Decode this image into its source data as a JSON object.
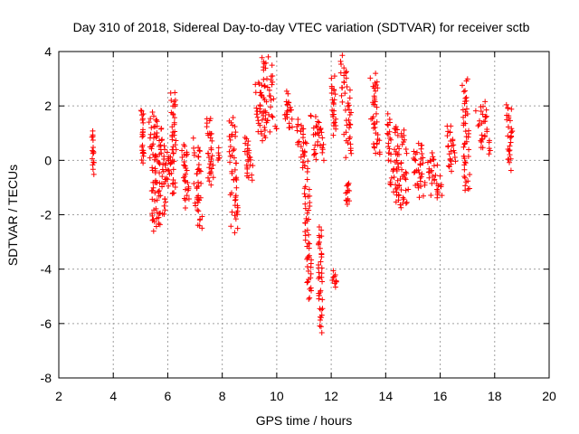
{
  "chart_data": {
    "type": "scatter",
    "title": "Day 310 of 2018, Sidereal Day-to-day VTEC variation (SDTVAR) for receiver sctb",
    "xlabel": "GPS time / hours",
    "ylabel": "SDTVAR / TECUs",
    "xlim": [
      2,
      20
    ],
    "ylim": [
      -8,
      4
    ],
    "xticks": [
      2,
      4,
      6,
      8,
      10,
      12,
      14,
      16,
      18,
      20
    ],
    "yticks": [
      -8,
      -6,
      -4,
      -2,
      0,
      2,
      4
    ],
    "grid": true,
    "marker": "+",
    "color": "#ff0000",
    "series": [
      {
        "name": "SDTVAR",
        "segments": [
          {
            "x": [
              3.2,
              3.3
            ],
            "y": [
              1.0,
              -0.4
            ]
          },
          {
            "x": [
              5.0,
              5.15
            ],
            "y": [
              1.9,
              -0.1
            ]
          },
          {
            "x": [
              5.3,
              5.7
            ],
            "y": [
              1.7,
              -2.6
            ]
          },
          {
            "x": [
              5.5,
              6.0
            ],
            "y": [
              1.4,
              -2.2
            ]
          },
          {
            "x": [
              5.8,
              6.3
            ],
            "y": [
              0.3,
              -1.2
            ]
          },
          {
            "x": [
              6.1,
              6.35
            ],
            "y": [
              2.5,
              0.0
            ]
          },
          {
            "x": [
              6.5,
              6.8
            ],
            "y": [
              0.6,
              -1.6
            ]
          },
          {
            "x": [
              6.9,
              7.3
            ],
            "y": [
              0.7,
              -2.4
            ]
          },
          {
            "x": [
              7.4,
              7.7
            ],
            "y": [
              1.5,
              -0.9
            ]
          },
          {
            "x": [
              7.8,
              7.9
            ],
            "y": [
              0.3,
              0.0
            ]
          },
          {
            "x": [
              8.2,
              8.6
            ],
            "y": [
              1.5,
              -2.5
            ]
          },
          {
            "x": [
              8.8,
              9.2
            ],
            "y": [
              0.8,
              -0.7
            ]
          },
          {
            "x": [
              9.2,
              9.6
            ],
            "y": [
              2.9,
              0.8
            ]
          },
          {
            "x": [
              9.4,
              10.0
            ],
            "y": [
              3.8,
              1.0
            ]
          },
          {
            "x": [
              10.2,
              10.6
            ],
            "y": [
              2.4,
              1.2
            ]
          },
          {
            "x": [
              10.7,
              11.2
            ],
            "y": [
              1.4,
              -0.4
            ]
          },
          {
            "x": [
              11.0,
              11.3
            ],
            "y": [
              -0.8,
              -5.0
            ]
          },
          {
            "x": [
              11.5,
              11.7
            ],
            "y": [
              -2.5,
              -6.2
            ]
          },
          {
            "x": [
              11.2,
              11.8
            ],
            "y": [
              1.6,
              0.1
            ]
          },
          {
            "x": [
              12.0,
              12.2
            ],
            "y": [
              3.0,
              1.0
            ]
          },
          {
            "x": [
              12.0,
              12.2
            ],
            "y": [
              -4.2,
              -4.6
            ]
          },
          {
            "x": [
              12.3,
              12.8
            ],
            "y": [
              3.7,
              0.2
            ]
          },
          {
            "x": [
              12.5,
              12.7
            ],
            "y": [
              -0.8,
              -1.6
            ]
          },
          {
            "x": [
              13.4,
              13.8
            ],
            "y": [
              3.1,
              0.2
            ]
          },
          {
            "x": [
              14.0,
              14.5
            ],
            "y": [
              1.6,
              -1.4
            ]
          },
          {
            "x": [
              14.3,
              14.9
            ],
            "y": [
              1.2,
              -1.8
            ]
          },
          {
            "x": [
              14.9,
              15.5
            ],
            "y": [
              0.6,
              -1.2
            ]
          },
          {
            "x": [
              15.5,
              16.1
            ],
            "y": [
              0.2,
              -1.4
            ]
          },
          {
            "x": [
              16.2,
              16.6
            ],
            "y": [
              1.2,
              -0.4
            ]
          },
          {
            "x": [
              16.8,
              17.1
            ],
            "y": [
              2.9,
              -1.2
            ]
          },
          {
            "x": [
              17.3,
              17.9
            ],
            "y": [
              2.0,
              0.4
            ]
          },
          {
            "x": [
              18.4,
              18.7
            ],
            "y": [
              2.0,
              -0.2
            ]
          }
        ]
      }
    ]
  }
}
